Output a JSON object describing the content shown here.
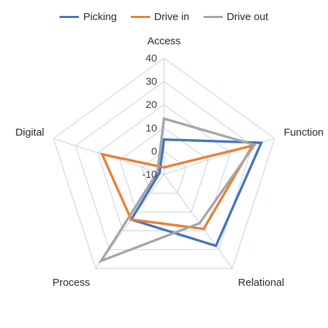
{
  "chart_data": {
    "type": "radar",
    "axes": [
      "Access",
      "Function",
      "Relational",
      "Process",
      "Digital"
    ],
    "rlim": [
      -10,
      40
    ],
    "ticks": [
      -10,
      0,
      10,
      20,
      30,
      40
    ],
    "grid": true,
    "legend_position": "top",
    "series": [
      {
        "name": "Picking",
        "color": "#4472C4",
        "values": [
          5,
          34,
          28,
          14,
          -8
        ]
      },
      {
        "name": "Drive in",
        "color": "#ED7D31",
        "values": [
          -7,
          30,
          19,
          14,
          18
        ]
      },
      {
        "name": "Drive out",
        "color": "#A5A5A5",
        "values": [
          14,
          31,
          16,
          36,
          -7
        ]
      }
    ]
  }
}
